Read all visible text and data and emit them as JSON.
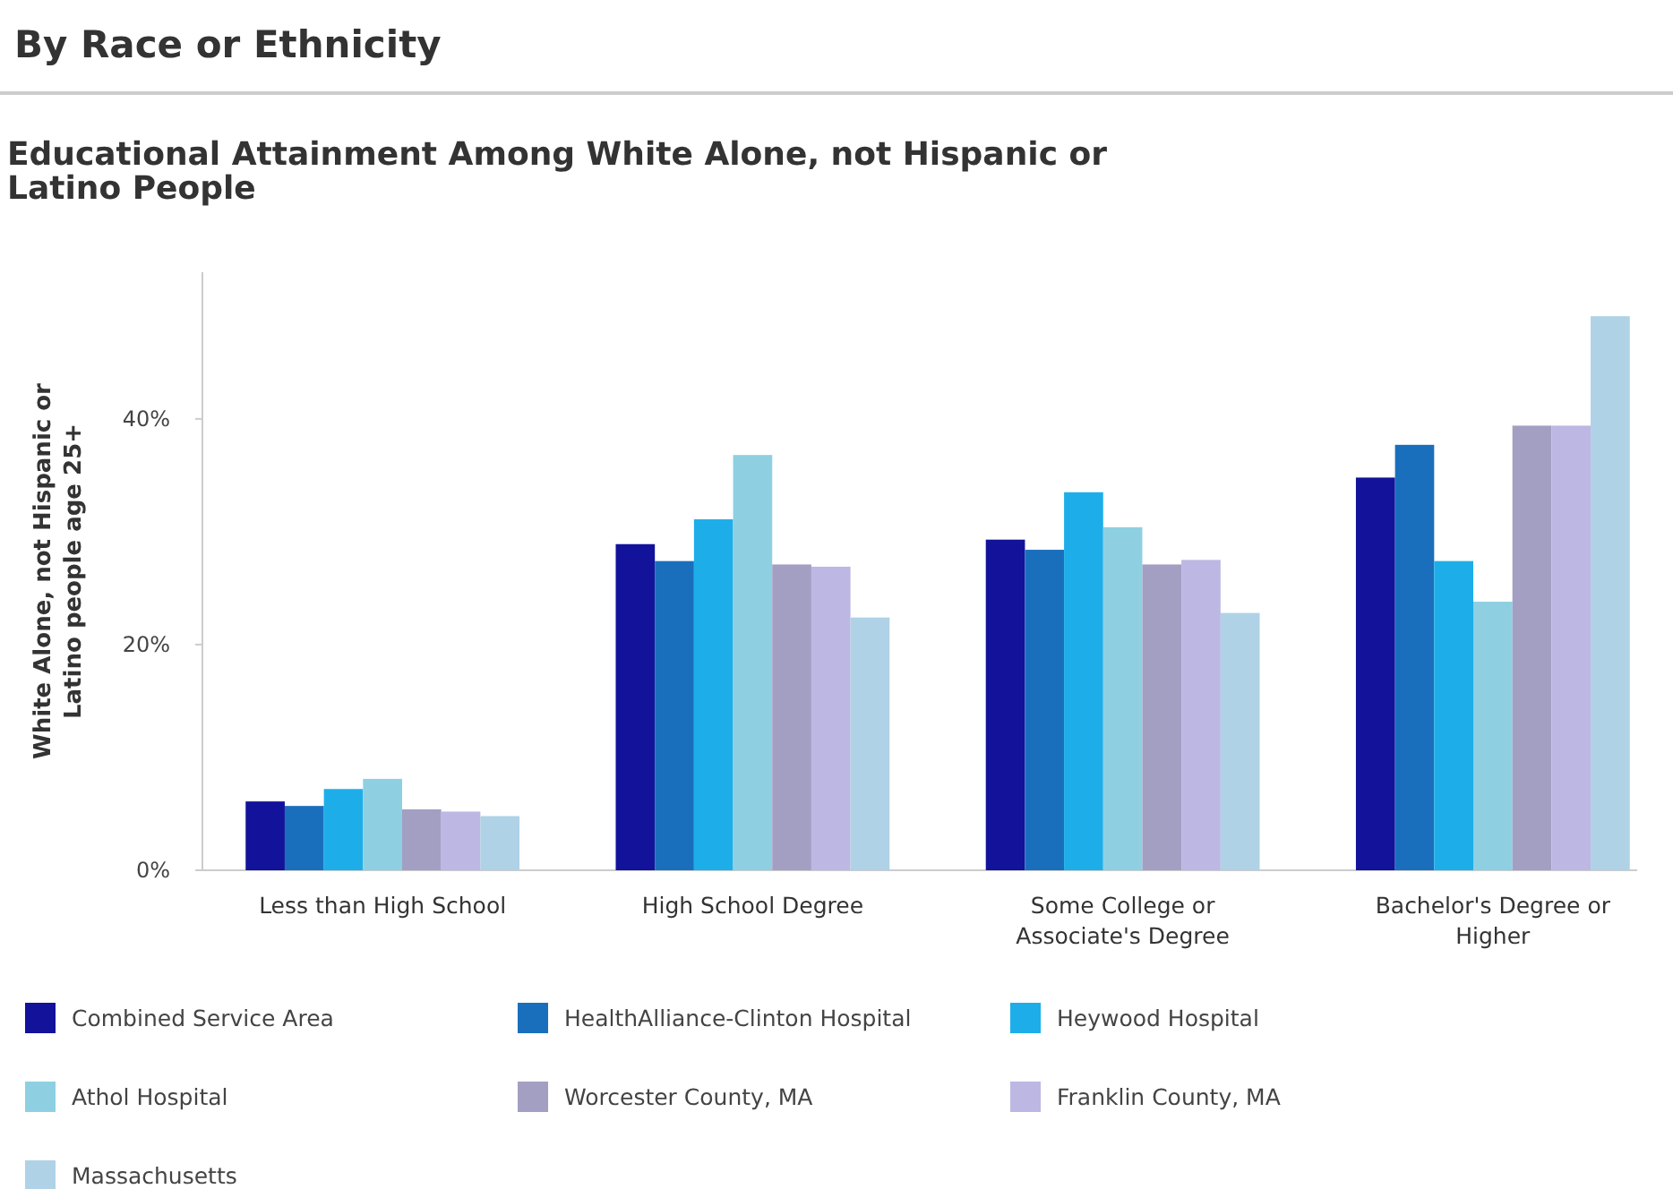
{
  "chart_data": {
    "type": "bar",
    "title": "By Race or Ethnicity",
    "subtitle": "Educational Attainment Among White Alone, not Hispanic or Latino People",
    "ylabel": "White Alone, not Hispanic or Latino people age 25+",
    "categories": [
      "Less than High School",
      "High School Degree",
      "Some College or Associate's Degree",
      "Bachelor's Degree or Higher"
    ],
    "series": [
      {
        "name": "Combined Service Area",
        "color": "#12129a",
        "values": [
          6.1,
          28.9,
          29.3,
          34.8
        ]
      },
      {
        "name": "HealthAlliance-Clinton Hospital",
        "color": "#1a6fbd",
        "values": [
          5.7,
          27.4,
          28.4,
          37.7
        ]
      },
      {
        "name": "Heywood Hospital",
        "color": "#1daeea",
        "values": [
          7.2,
          31.1,
          33.5,
          27.4
        ]
      },
      {
        "name": "Athol Hospital",
        "color": "#8ed0e2",
        "values": [
          8.1,
          36.8,
          30.4,
          23.8
        ]
      },
      {
        "name": "Worcester County, MA",
        "color": "#a39fc3",
        "values": [
          5.4,
          27.1,
          27.1,
          39.4
        ]
      },
      {
        "name": "Franklin County, MA",
        "color": "#bcb7e3",
        "values": [
          5.2,
          26.9,
          27.5,
          39.4
        ]
      },
      {
        "name": "Massachusetts",
        "color": "#afd2e6",
        "values": [
          4.8,
          22.4,
          22.8,
          49.1
        ]
      }
    ],
    "ylim": [
      0,
      53
    ],
    "yticks": [
      {
        "value": 0,
        "label": "0%"
      },
      {
        "value": 20,
        "label": "20%"
      },
      {
        "value": 40,
        "label": "40%"
      }
    ],
    "grid": false,
    "legend": "bottom"
  }
}
